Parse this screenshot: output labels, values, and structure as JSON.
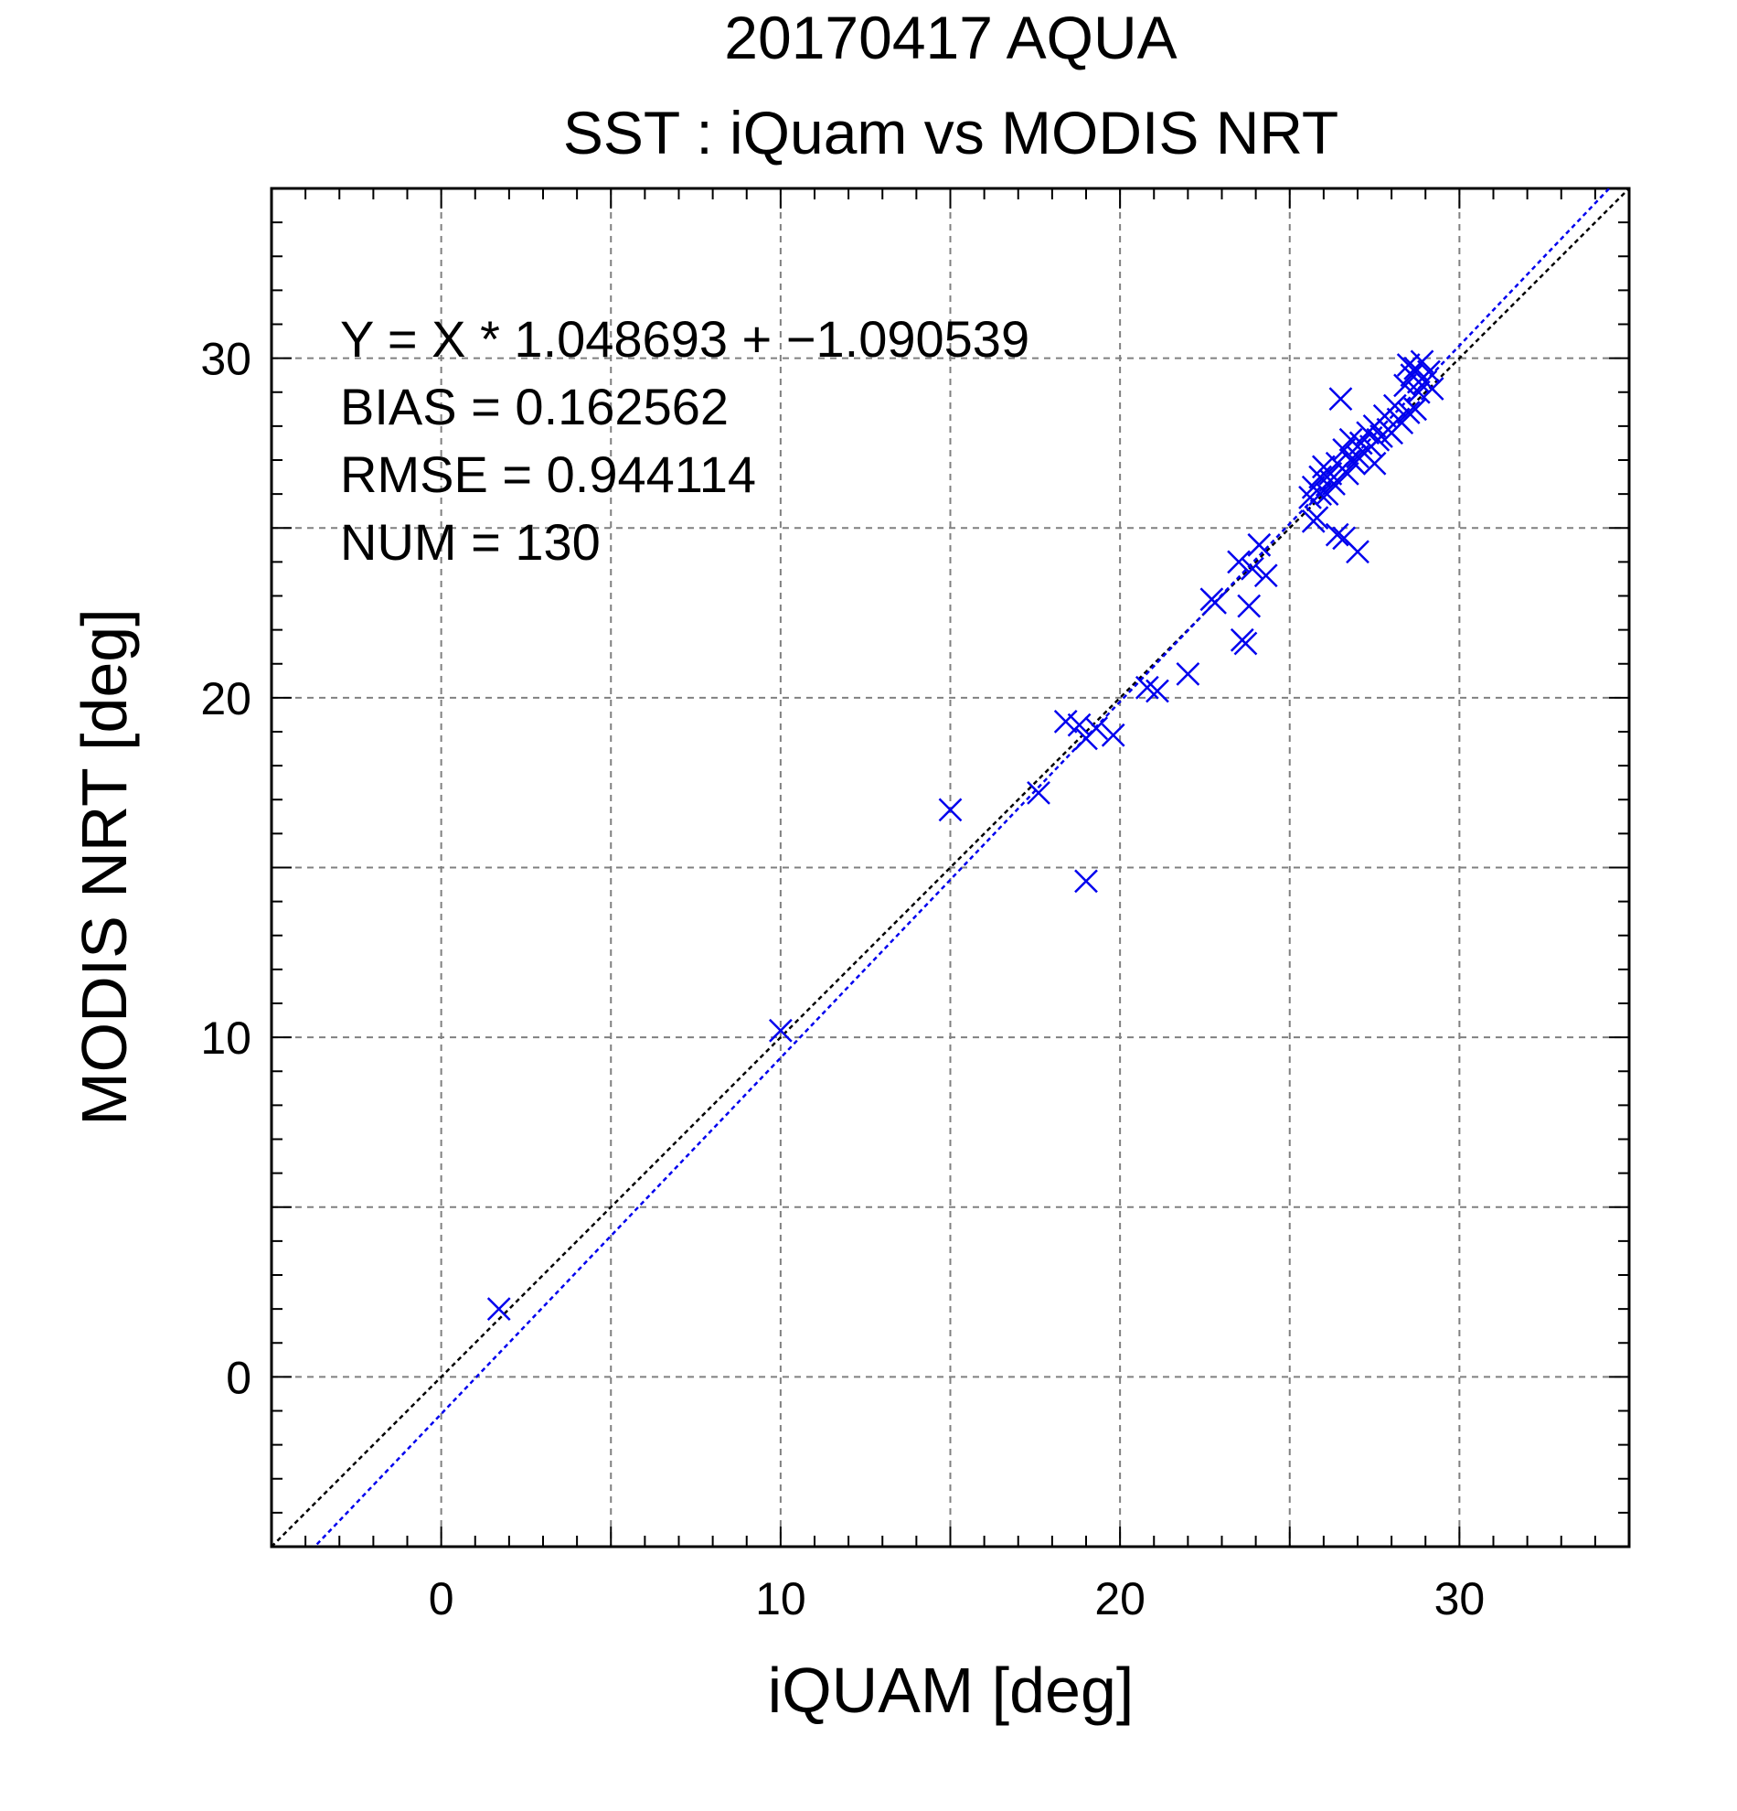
{
  "chart_data": {
    "type": "scatter",
    "title": "20170417 AQUA",
    "subtitle": "SST : iQuam vs MODIS NRT",
    "xlabel": "iQUAM [deg]",
    "ylabel": "MODIS NRT [deg]",
    "xlim": [
      -5,
      35
    ],
    "ylim": [
      -5,
      35
    ],
    "xticks": [
      0,
      10,
      20,
      30
    ],
    "yticks": [
      0,
      10,
      20,
      30
    ],
    "xtick_labels": [
      "0",
      "10",
      "20",
      "30"
    ],
    "ytick_labels": [
      "0",
      "10",
      "20",
      "30"
    ],
    "grid": true,
    "marker": "x",
    "colors": {
      "points": "#0000ee",
      "fit_line": "#0000ee",
      "identity_line": "#000000",
      "grid": "#808080"
    },
    "annotations": [
      "Y = X * 1.048693 + −1.090539",
      "BIAS = 0.162562",
      "RMSE = 0.944114",
      "NUM = 130"
    ],
    "fit": {
      "slope": 1.048693,
      "intercept": -1.090539
    },
    "series": [
      {
        "points": [
          [
            1.7,
            2.0
          ],
          [
            10.0,
            10.2
          ],
          [
            15.0,
            16.7
          ],
          [
            17.6,
            17.2
          ],
          [
            18.4,
            19.3
          ],
          [
            18.8,
            19.2
          ],
          [
            19.0,
            18.8
          ],
          [
            19.3,
            19.1
          ],
          [
            19.8,
            18.9
          ],
          [
            19.0,
            14.6
          ],
          [
            20.8,
            20.3
          ],
          [
            21.1,
            20.2
          ],
          [
            22.0,
            20.7
          ],
          [
            22.7,
            22.9
          ],
          [
            22.8,
            22.8
          ],
          [
            23.5,
            24.0
          ],
          [
            23.7,
            21.6
          ],
          [
            23.6,
            21.7
          ],
          [
            23.8,
            22.7
          ],
          [
            23.9,
            23.8
          ],
          [
            24.1,
            24.5
          ],
          [
            24.3,
            23.6
          ],
          [
            25.7,
            25.2
          ],
          [
            25.8,
            25.3
          ],
          [
            25.6,
            25.9
          ],
          [
            25.7,
            26.2
          ],
          [
            25.9,
            26.5
          ],
          [
            26.0,
            26.8
          ],
          [
            26.2,
            26.4
          ],
          [
            26.4,
            26.9
          ],
          [
            26.6,
            27.3
          ],
          [
            26.8,
            27.6
          ],
          [
            27.0,
            27.1
          ],
          [
            27.1,
            27.5
          ],
          [
            27.3,
            27.8
          ],
          [
            27.5,
            28.0
          ],
          [
            27.6,
            27.6
          ],
          [
            27.8,
            28.3
          ],
          [
            27.9,
            27.9
          ],
          [
            28.1,
            28.6
          ],
          [
            28.2,
            28.2
          ],
          [
            28.4,
            29.2
          ],
          [
            28.5,
            29.8
          ],
          [
            28.6,
            29.5
          ],
          [
            28.7,
            29.7
          ],
          [
            28.8,
            29.3
          ],
          [
            28.9,
            29.9
          ],
          [
            29.1,
            29.6
          ],
          [
            29.2,
            29.1
          ],
          [
            28.7,
            28.5
          ],
          [
            26.5,
            28.8
          ],
          [
            26.4,
            24.8
          ],
          [
            26.6,
            24.7
          ],
          [
            27.0,
            24.3
          ],
          [
            27.5,
            26.9
          ],
          [
            26.1,
            26.0
          ],
          [
            26.3,
            26.3
          ],
          [
            26.7,
            26.6
          ],
          [
            26.9,
            26.9
          ],
          [
            27.2,
            27.2
          ],
          [
            27.4,
            27.4
          ],
          [
            27.7,
            27.7
          ],
          [
            28.0,
            27.8
          ],
          [
            28.3,
            28.1
          ],
          [
            28.5,
            28.4
          ],
          [
            28.8,
            29.0
          ],
          [
            29.0,
            29.3
          ],
          [
            25.9,
            26.0
          ],
          [
            26.2,
            26.6
          ],
          [
            26.8,
            27.0
          ]
        ]
      }
    ]
  }
}
